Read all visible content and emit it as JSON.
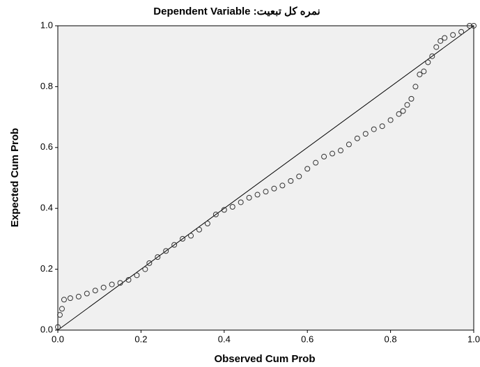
{
  "chart_data": {
    "type": "scatter",
    "title": "Dependent Variable :نمره کل تبعیت",
    "x_label": "Observed Cum Prob",
    "y_label": "Expected Cum Prob",
    "xlim": [
      0,
      1
    ],
    "ylim": [
      0,
      1
    ],
    "xticks": [
      {
        "value": 0,
        "label": "0.0"
      },
      0.2,
      0.4,
      0.6,
      0.8,
      {
        "value": 1,
        "label": "1.0"
      }
    ],
    "yticks": [
      {
        "value": 0,
        "label": "0.0"
      },
      0.2,
      0.4,
      0.6,
      0.8,
      {
        "value": 1,
        "label": "1.0"
      }
    ],
    "reference_line": true,
    "color": "#333333",
    "x": [
      0.0,
      0.005,
      0.01,
      0.015,
      0.03,
      0.05,
      0.07,
      0.09,
      0.11,
      0.13,
      0.15,
      0.17,
      0.19,
      0.21,
      0.22,
      0.24,
      0.26,
      0.28,
      0.3,
      0.32,
      0.34,
      0.36,
      0.38,
      0.4,
      0.42,
      0.44,
      0.46,
      0.48,
      0.5,
      0.52,
      0.54,
      0.56,
      0.58,
      0.6,
      0.62,
      0.64,
      0.66,
      0.68,
      0.7,
      0.72,
      0.74,
      0.76,
      0.78,
      0.8,
      0.82,
      0.83,
      0.84,
      0.85,
      0.86,
      0.87,
      0.88,
      0.89,
      0.9,
      0.91,
      0.92,
      0.93,
      0.95,
      0.97,
      0.99,
      1.0
    ],
    "values": [
      0.01,
      0.05,
      0.07,
      0.1,
      0.105,
      0.11,
      0.12,
      0.13,
      0.14,
      0.15,
      0.155,
      0.165,
      0.18,
      0.2,
      0.22,
      0.24,
      0.26,
      0.28,
      0.3,
      0.31,
      0.33,
      0.35,
      0.38,
      0.395,
      0.405,
      0.42,
      0.435,
      0.445,
      0.455,
      0.465,
      0.475,
      0.49,
      0.505,
      0.53,
      0.55,
      0.57,
      0.58,
      0.59,
      0.61,
      0.63,
      0.645,
      0.66,
      0.67,
      0.69,
      0.71,
      0.72,
      0.74,
      0.76,
      0.8,
      0.84,
      0.85,
      0.88,
      0.9,
      0.93,
      0.95,
      0.96,
      0.97,
      0.98,
      1.0,
      1.0
    ]
  }
}
